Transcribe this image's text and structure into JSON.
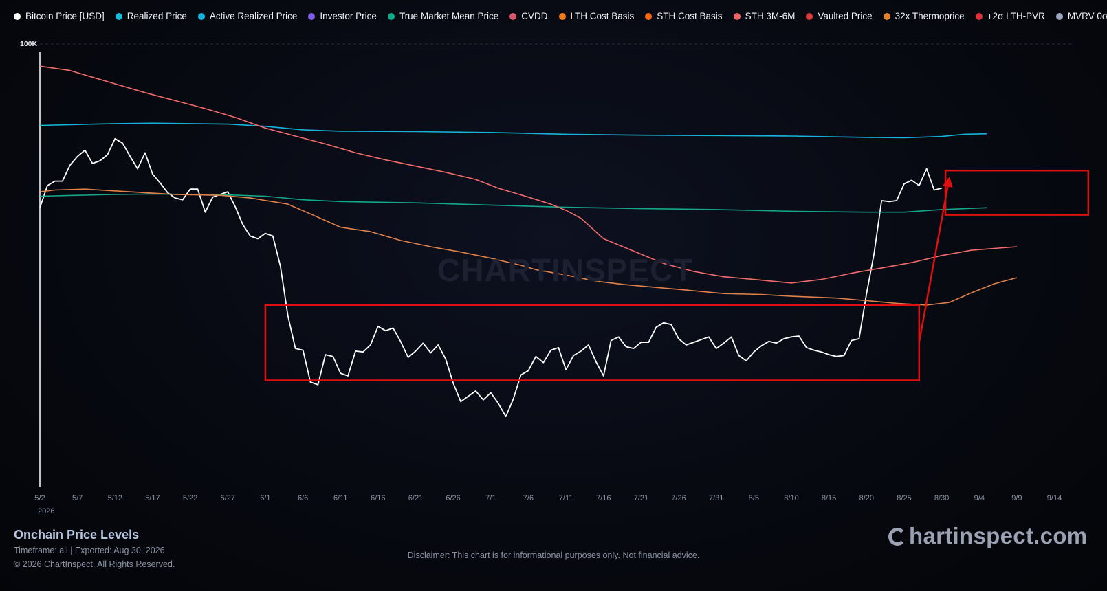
{
  "legend": [
    {
      "label": "Bitcoin Price [USD]",
      "color": "#ffffff"
    },
    {
      "label": "Realized Price",
      "color": "#14b8d8"
    },
    {
      "label": "Active Realized Price",
      "color": "#18b3dc"
    },
    {
      "label": "Investor Price",
      "color": "#7c5ce0"
    },
    {
      "label": "True Market Mean Price",
      "color": "#13a88a"
    },
    {
      "label": "CVDD",
      "color": "#d9566c"
    },
    {
      "label": "LTH Cost Basis",
      "color": "#f07a1e"
    },
    {
      "label": "STH Cost Basis",
      "color": "#f26a16"
    },
    {
      "label": "STH 3M-6M",
      "color": "#f06666"
    },
    {
      "label": "Vaulted Price",
      "color": "#d93a3a"
    },
    {
      "label": "32x Thermoprice",
      "color": "#e0812c"
    },
    {
      "label": "+2σ LTH-PVR",
      "color": "#e0343c"
    },
    {
      "label": "MVRV 0σ",
      "color": "#9ba6bd"
    }
  ],
  "watermark": "CHARTINSPECT",
  "footer": {
    "title": "Onchain Price Levels",
    "timeframe": "Timeframe: all | Exported: Aug 30, 2026",
    "copyright": "© 2026 ChartInspect. All Rights Reserved.",
    "disclaimer": "Disclaimer: This chart is for informational purposes only. Not financial advice.",
    "brand": "hartinspect.com"
  },
  "chart_data": {
    "type": "line",
    "ytick": "100K",
    "year_label": "2026",
    "x_ticks": [
      "5/2",
      "5/7",
      "5/12",
      "5/17",
      "5/22",
      "5/27",
      "6/1",
      "6/6",
      "6/11",
      "6/16",
      "6/21",
      "6/26",
      "7/1",
      "7/6",
      "7/11",
      "7/16",
      "7/21",
      "7/26",
      "7/31",
      "8/5",
      "8/10",
      "8/15",
      "8/20",
      "8/25",
      "8/30",
      "9/4",
      "9/9",
      "9/14"
    ],
    "x_range_days": [
      0,
      135
    ],
    "y_range": [
      50000,
      100000
    ],
    "series": [
      {
        "name": "Bitcoin Price [USD]",
        "color": "#ffffff",
        "values": [
          81500,
          84000,
          84500,
          84500,
          86300,
          87300,
          88000,
          86500,
          86800,
          87500,
          89300,
          88800,
          87300,
          85900,
          87700,
          85300,
          84300,
          83200,
          82600,
          82400,
          83600,
          83600,
          81000,
          82700,
          83000,
          83300,
          81600,
          79600,
          78300,
          78000,
          78600,
          78300,
          74900,
          69300,
          65600,
          65400,
          61800,
          61500,
          64900,
          64700,
          62800,
          62500,
          65300,
          65200,
          66000,
          68100,
          67600,
          67900,
          66400,
          64600,
          65300,
          66200,
          65100,
          66000,
          64400,
          61700,
          59600,
          60200,
          60800,
          59800,
          60600,
          59400,
          57900,
          59900,
          62600,
          63100,
          64700,
          64000,
          65400,
          65700,
          63200,
          64800,
          65300,
          66000,
          64100,
          62500,
          66500,
          66900,
          65800,
          65600,
          66300,
          66300,
          68000,
          68500,
          68300,
          66700,
          66000,
          66300,
          66600,
          66900,
          65600,
          66200,
          66900,
          64800,
          64200,
          65200,
          65900,
          66400,
          66200,
          66700,
          66900,
          67000,
          65700,
          65400,
          65200,
          64900,
          64700,
          64800,
          66500,
          66700,
          71800,
          76300,
          82300,
          82200,
          82300,
          84200,
          84600,
          84000,
          85900,
          83500,
          83700
        ]
      },
      {
        "name": "Active Realized Price",
        "color": "#18b3dc",
        "values": [
          [
            0,
            90800
          ],
          [
            5,
            90900
          ],
          [
            10,
            91000
          ],
          [
            15,
            91050
          ],
          [
            20,
            91000
          ],
          [
            25,
            90950
          ],
          [
            30,
            90700
          ],
          [
            35,
            90300
          ],
          [
            40,
            90150
          ],
          [
            50,
            90100
          ],
          [
            60,
            90000
          ],
          [
            70,
            89800
          ],
          [
            80,
            89700
          ],
          [
            90,
            89650
          ],
          [
            100,
            89600
          ],
          [
            110,
            89450
          ],
          [
            115,
            89400
          ],
          [
            120,
            89550
          ],
          [
            123,
            89800
          ],
          [
            126,
            89850
          ]
        ]
      },
      {
        "name": "True Market Mean Price",
        "color": "#13a88a",
        "values": [
          [
            0,
            82800
          ],
          [
            5,
            82900
          ],
          [
            10,
            83000
          ],
          [
            15,
            83050
          ],
          [
            20,
            83000
          ],
          [
            25,
            82950
          ],
          [
            30,
            82800
          ],
          [
            35,
            82400
          ],
          [
            40,
            82200
          ],
          [
            50,
            82050
          ],
          [
            60,
            81800
          ],
          [
            70,
            81550
          ],
          [
            80,
            81400
          ],
          [
            90,
            81300
          ],
          [
            100,
            81100
          ],
          [
            110,
            81000
          ],
          [
            115,
            81000
          ],
          [
            120,
            81300
          ],
          [
            126,
            81500
          ]
        ]
      },
      {
        "name": "CVDD",
        "color": "#e0814a",
        "values": [
          [
            0,
            83300
          ],
          [
            2,
            83500
          ],
          [
            6,
            83600
          ],
          [
            10,
            83400
          ],
          [
            14,
            83200
          ],
          [
            18,
            83000
          ],
          [
            24,
            82900
          ],
          [
            28,
            82600
          ],
          [
            33,
            81900
          ],
          [
            36,
            80800
          ],
          [
            40,
            79300
          ],
          [
            44,
            78800
          ],
          [
            48,
            77800
          ],
          [
            52,
            77100
          ],
          [
            56,
            76500
          ],
          [
            60,
            75800
          ],
          [
            64,
            75000
          ],
          [
            66,
            74500
          ],
          [
            70,
            73900
          ],
          [
            74,
            73200
          ],
          [
            78,
            72800
          ],
          [
            82,
            72500
          ],
          [
            86,
            72200
          ],
          [
            91,
            71800
          ],
          [
            96,
            71700
          ],
          [
            100,
            71500
          ],
          [
            106,
            71300
          ],
          [
            110,
            71000
          ],
          [
            114,
            70700
          ],
          [
            118,
            70500
          ],
          [
            121,
            70800
          ],
          [
            124,
            71900
          ],
          [
            127,
            72900
          ],
          [
            130,
            73600
          ]
        ]
      },
      {
        "name": "STH 3M-6M",
        "color": "#f26b6b",
        "values": [
          [
            0,
            97500
          ],
          [
            4,
            97000
          ],
          [
            6,
            96500
          ],
          [
            10,
            95500
          ],
          [
            14,
            94500
          ],
          [
            18,
            93600
          ],
          [
            22,
            92700
          ],
          [
            26,
            91700
          ],
          [
            30,
            90500
          ],
          [
            34,
            89600
          ],
          [
            38,
            88700
          ],
          [
            42,
            87700
          ],
          [
            46,
            86900
          ],
          [
            50,
            86200
          ],
          [
            54,
            85500
          ],
          [
            58,
            84700
          ],
          [
            61,
            83700
          ],
          [
            65,
            82700
          ],
          [
            68,
            81900
          ],
          [
            70,
            81200
          ],
          [
            72,
            80300
          ],
          [
            75,
            78000
          ],
          [
            79,
            76600
          ],
          [
            83,
            75200
          ],
          [
            87,
            74300
          ],
          [
            91,
            73700
          ],
          [
            95,
            73400
          ],
          [
            100,
            73000
          ],
          [
            104,
            73400
          ],
          [
            108,
            74100
          ],
          [
            112,
            74700
          ],
          [
            116,
            75300
          ],
          [
            120,
            76100
          ],
          [
            124,
            76700
          ],
          [
            127,
            76900
          ],
          [
            130,
            77100
          ]
        ]
      }
    ],
    "annotations": [
      {
        "type": "rect",
        "color": "#e01010",
        "x": [
          30,
          117
        ],
        "y": [
          62000,
          70500
        ]
      },
      {
        "type": "rect",
        "color": "#e01010",
        "x": [
          120.5,
          139.5
        ],
        "y": [
          80700,
          85700
        ]
      },
      {
        "type": "arrow",
        "color": "#e01010",
        "from": [
          117,
          66300
        ],
        "to": [
          121,
          84800
        ]
      }
    ]
  }
}
